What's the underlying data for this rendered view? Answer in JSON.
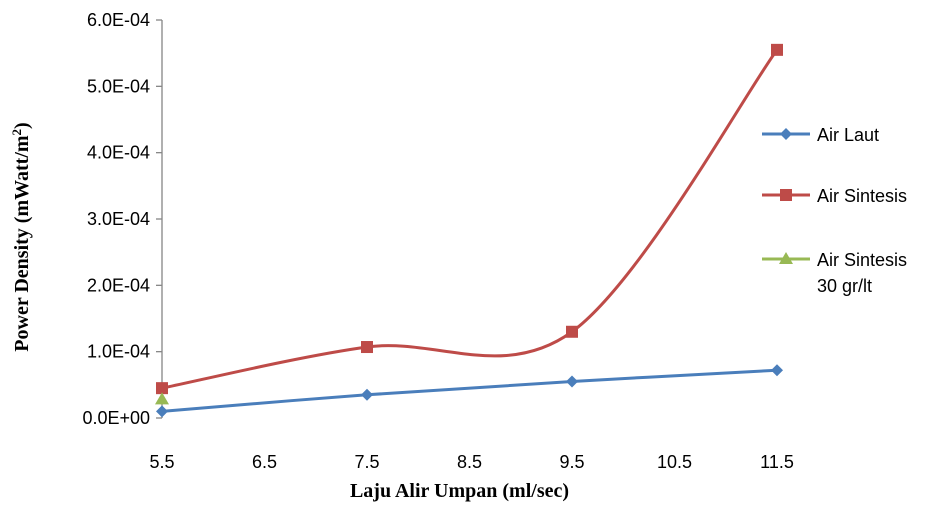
{
  "chart_data": {
    "type": "line",
    "title": "",
    "xlabel": "Laju Alir Umpan (ml/sec)",
    "ylabel": "Power Density (mWatt/m",
    "ylabel_superscript": "2",
    "ylabel_close": ")",
    "x_ticks": [
      "5.5",
      "6.5",
      "7.5",
      "8.5",
      "9.5",
      "10.5",
      "11.5"
    ],
    "y_ticks": [
      "0.0E+00",
      "1.0E-04",
      "2.0E-04",
      "3.0E-04",
      "4.0E-04",
      "5.0E-04",
      "6.0E-04"
    ],
    "xlim": [
      5.5,
      11.5
    ],
    "ylim": [
      0,
      0.0006
    ],
    "grid": false,
    "legend_position": "right",
    "series": [
      {
        "name": "Air Laut",
        "color": "#4a7ebb",
        "marker": "diamond",
        "x": [
          5.5,
          7.5,
          9.5,
          11.5
        ],
        "y": [
          1e-05,
          3.5e-05,
          5.5e-05,
          7.2e-05
        ]
      },
      {
        "name": "Air Sintesis",
        "color": "#be4b48",
        "marker": "square",
        "x": [
          5.5,
          7.5,
          9.5,
          11.5
        ],
        "y": [
          4.5e-05,
          0.000107,
          0.00013,
          0.000555
        ]
      },
      {
        "name": "Air Sintesis 30 gr/lt",
        "legend_lines": [
          "Air Sintesis",
          "30 gr/lt"
        ],
        "color": "#98b954",
        "marker": "triangle",
        "x": [
          5.5
        ],
        "y": [
          2.8e-05
        ]
      }
    ]
  }
}
